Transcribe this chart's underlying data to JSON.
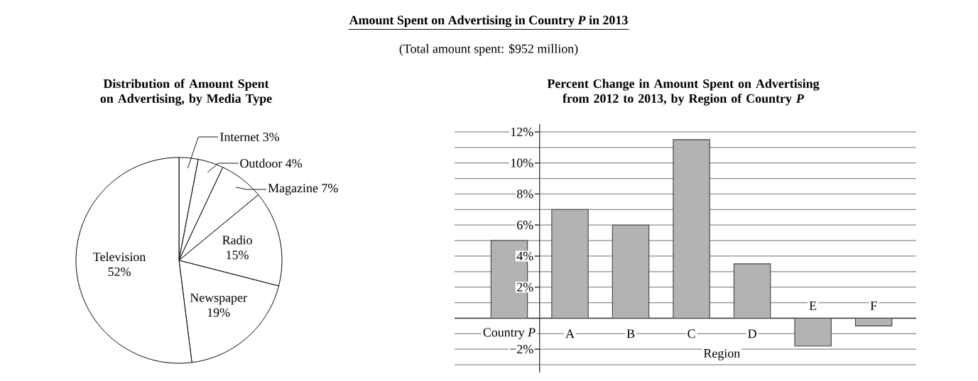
{
  "chart_data": [
    {
      "type": "pie",
      "title": "Distribution of Amount Spent on Advertising, by Media Type",
      "annotations": [
        "Amount Spent on Advertising in Country *P* in 2013",
        "(Total amount spent: $952 million)"
      ],
      "categories": [
        "Internet",
        "Outdoor",
        "Magazine",
        "Radio",
        "Newspaper",
        "Television"
      ],
      "values": [
        3,
        4,
        7,
        15,
        19,
        52
      ],
      "value_labels": [
        "3%",
        "4%",
        "7%",
        "15%",
        "19%",
        "52%"
      ],
      "colors": [
        "#ffffff",
        "#ffffff",
        "#ffffff",
        "#ffffff",
        "#ffffff",
        "#ffffff"
      ]
    },
    {
      "type": "bar",
      "title": "Percent Change in Amount Spent on Advertising from 2012 to 2013, by Region of Country *P*",
      "xlabel": "Region",
      "categories": [
        "Country *P*",
        "A",
        "B",
        "C",
        "D",
        "E",
        "F"
      ],
      "values": [
        5,
        7,
        6,
        11.5,
        3.5,
        -1.8,
        -0.5
      ],
      "color": "#b3b3b3",
      "ylim": [
        -3.5,
        12.5
      ],
      "yticks": [
        {
          "value": -3,
          "label": null
        },
        {
          "value": -2,
          "label": "−2%"
        },
        {
          "value": -1,
          "label": null
        },
        {
          "value": 1,
          "label": null
        },
        {
          "value": 2,
          "label": "2%"
        },
        {
          "value": 3,
          "label": null
        },
        {
          "value": 4,
          "label": "4%"
        },
        {
          "value": 5,
          "label": null
        },
        {
          "value": 6,
          "label": "6%"
        },
        {
          "value": 7,
          "label": null
        },
        {
          "value": 8,
          "label": "8%"
        },
        {
          "value": 9,
          "label": null
        },
        {
          "value": 10,
          "label": "10%"
        },
        {
          "value": 11,
          "label": null
        },
        {
          "value": 12,
          "label": "12%"
        }
      ],
      "grid": "y"
    }
  ]
}
